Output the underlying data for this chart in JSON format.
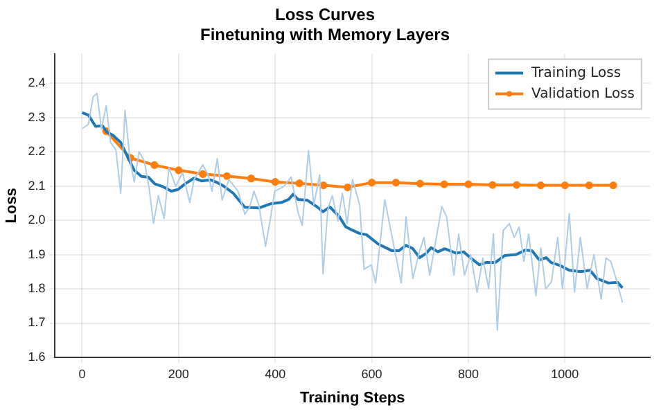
{
  "chart_data": {
    "type": "line",
    "title": "Loss Curves",
    "subtitle": "Finetuning with Memory Layers",
    "xlabel": "Training Steps",
    "ylabel": "Loss",
    "xlim": [
      -56,
      1176
    ],
    "ylim": [
      1.6,
      2.486
    ],
    "xticks": [
      0,
      200,
      400,
      600,
      800,
      1000
    ],
    "yticks": [
      1.6,
      1.7,
      1.8,
      1.9,
      {
        "value": 2,
        "label": "2.0"
      },
      2.1,
      2.2,
      2.3,
      2.4
    ],
    "grid": true,
    "legend": "top right",
    "series": [
      {
        "color": "#aecde6",
        "marker": "none",
        "x": [
          0,
          13,
          23,
          31,
          40,
          50,
          59,
          70,
          80,
          89,
          99,
          108,
          118,
          129,
          139,
          148,
          158,
          170,
          180,
          194,
          208,
          223,
          232,
          250,
          261,
          269,
          280,
          290,
          304,
          323,
          337,
          347,
          356,
          366,
          380,
          390,
          399,
          418,
          433,
          447,
          456,
          469,
          480,
          492,
          499,
          509,
          518,
          530,
          539,
          549,
          560,
          575,
          584,
          599,
          608,
          627,
          645,
          661,
          671,
          685,
          697,
          708,
          720,
          730,
          745,
          755,
          770,
          780,
          792,
          805,
          818,
          830,
          842,
          852,
          860,
          872,
          885,
          895,
          905,
          915,
          925,
          940,
          950,
          960,
          972,
          985,
          995,
          1009,
          1020,
          1032,
          1046,
          1060,
          1075,
          1085,
          1095,
          1108,
          1119
        ],
        "values": [
          2.267,
          2.28,
          2.361,
          2.37,
          2.267,
          2.334,
          2.227,
          2.206,
          2.079,
          2.321,
          2.18,
          2.112,
          2.2,
          2.173,
          2.092,
          1.991,
          2.072,
          2.005,
          2.153,
          2.099,
          2.139,
          2.052,
          2.119,
          2.162,
          2.133,
          2.085,
          2.18,
          2.059,
          2.119,
          2.085,
          2.018,
          2.038,
          2.085,
          2.045,
          1.924,
          2.005,
          2.085,
          2.099,
          2.126,
          2.025,
          1.985,
          2.204,
          2.045,
          2.133,
          1.844,
          2.032,
          2.072,
          1.998,
          2.079,
          1.991,
          2.119,
          2.045,
          1.857,
          1.87,
          1.817,
          2.06,
          1.93,
          1.817,
          2.01,
          1.83,
          1.9,
          1.95,
          1.84,
          1.92,
          2.04,
          2.01,
          1.84,
          1.96,
          1.84,
          1.9,
          1.79,
          1.89,
          1.8,
          1.96,
          1.68,
          1.97,
          1.99,
          1.95,
          1.98,
          1.88,
          1.96,
          1.78,
          1.92,
          1.8,
          1.82,
          1.95,
          1.8,
          2.02,
          1.79,
          1.95,
          1.8,
          1.9,
          1.77,
          1.89,
          1.88,
          1.82,
          1.76
        ]
      },
      {
        "name": "Training Loss",
        "color": "#1f77b4",
        "marker": "none",
        "x": [
          0,
          13,
          28,
          42,
          51,
          65,
          80,
          94,
          108,
          123,
          137,
          151,
          166,
          185,
          199,
          213,
          232,
          247,
          266,
          280,
          294,
          313,
          337,
          366,
          390,
          413,
          428,
          437,
          447,
          466,
          485,
          499,
          513,
          532,
          546,
          560,
          574,
          589,
          613,
          642,
          656,
          671,
          685,
          699,
          713,
          723,
          737,
          751,
          775,
          790,
          804,
          823,
          837,
          856,
          875,
          899,
          918,
          932,
          947,
          961,
          971,
          990,
          1009,
          1033,
          1052,
          1066,
          1090,
          1109,
          1119
        ],
        "values": [
          2.314,
          2.307,
          2.274,
          2.276,
          2.258,
          2.247,
          2.227,
          2.186,
          2.146,
          2.128,
          2.126,
          2.106,
          2.099,
          2.085,
          2.09,
          2.106,
          2.123,
          2.115,
          2.118,
          2.11,
          2.099,
          2.079,
          2.038,
          2.036,
          2.048,
          2.052,
          2.061,
          2.076,
          2.061,
          2.059,
          2.041,
          2.025,
          2.039,
          2.012,
          1.981,
          1.971,
          1.962,
          1.958,
          1.931,
          1.911,
          1.911,
          1.927,
          1.917,
          1.891,
          1.904,
          1.92,
          1.908,
          1.917,
          1.904,
          1.908,
          1.891,
          1.87,
          1.877,
          1.877,
          1.897,
          1.9,
          1.913,
          1.911,
          1.884,
          1.891,
          1.877,
          1.868,
          1.854,
          1.85,
          1.854,
          1.83,
          1.817,
          1.819,
          1.803
        ]
      },
      {
        "name": "Validation Loss",
        "color": "#ff7f0e",
        "marker": "circle",
        "x": [
          50,
          100,
          150,
          200,
          250,
          300,
          350,
          400,
          450,
          500,
          550,
          600,
          650,
          700,
          750,
          800,
          850,
          900,
          950,
          1000,
          1050,
          1100
        ],
        "values": [
          2.26,
          2.182,
          2.161,
          2.146,
          2.135,
          2.129,
          2.122,
          2.112,
          2.108,
          2.102,
          2.096,
          2.11,
          2.11,
          2.107,
          2.105,
          2.105,
          2.103,
          2.103,
          2.102,
          2.102,
          2.102,
          2.102
        ]
      }
    ]
  }
}
